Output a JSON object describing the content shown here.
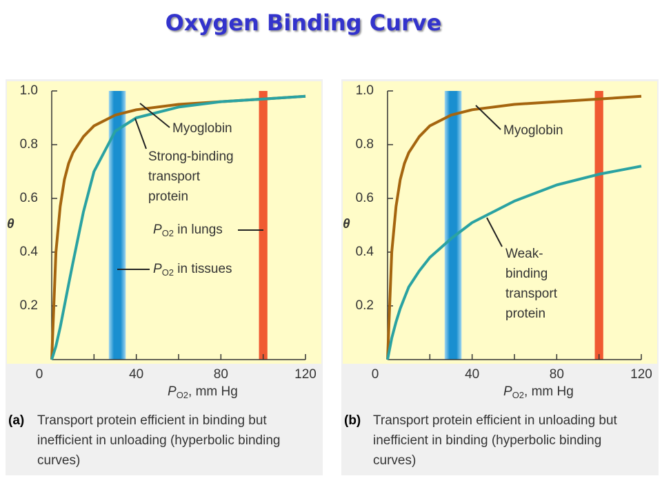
{
  "title": "Oxygen Binding Curve",
  "chart_data": [
    {
      "type": "line",
      "panel_label": "(a)",
      "caption": [
        "Transport protein efficient in binding but",
        "inefficient in unloading (hyperbolic binding",
        "curves)"
      ],
      "y_label": "θ",
      "x_label": [
        "P",
        "O2",
        ", mm Hg"
      ],
      "x": [
        0,
        2,
        4,
        6,
        8,
        10,
        15,
        20,
        30,
        40,
        60,
        80,
        100,
        120
      ],
      "series": [
        {
          "name": "Myoglobin",
          "color": "#a5650f",
          "values": [
            0,
            0.4,
            0.57,
            0.67,
            0.73,
            0.77,
            0.83,
            0.87,
            0.91,
            0.93,
            0.95,
            0.96,
            0.97,
            0.98
          ]
        },
        {
          "name": "Strong-binding transport protein",
          "color": "#2aa2a2",
          "values": [
            0,
            0.05,
            0.12,
            0.2,
            0.28,
            0.36,
            0.55,
            0.7,
            0.85,
            0.9,
            0.94,
            0.96,
            0.97,
            0.98
          ]
        }
      ],
      "bands": [
        {
          "range": [
            27,
            35
          ],
          "color": "#1a8fd0"
        },
        {
          "range": [
            98,
            102
          ],
          "color": "#f05a32"
        }
      ],
      "annotations": [
        {
          "lines": [
            "Myoglobin"
          ]
        },
        {
          "lines": [
            "Strong-binding",
            "transport",
            "protein"
          ]
        },
        {
          "parts": [
            "P",
            "O2",
            " in lungs"
          ]
        },
        {
          "parts": [
            "P",
            "O2",
            " in tissues"
          ]
        }
      ],
      "xlim": [
        0,
        120
      ],
      "xticks": [
        0,
        40,
        80,
        120
      ],
      "x_minor_ticks": [
        20,
        60,
        100
      ],
      "ylim": [
        0,
        1
      ],
      "yticks": [
        0.2,
        0.4,
        0.6,
        0.8,
        {
          "value": 1,
          "label": "1.0"
        }
      ]
    },
    {
      "type": "line",
      "panel_label": "(b)",
      "caption": [
        "Transport protein efficient in unloading but",
        "inefficient in binding (hyperbolic binding",
        "curves)"
      ],
      "y_label": "θ",
      "x_label": [
        "P",
        "O2",
        ", mm Hg"
      ],
      "x": [
        0,
        2,
        4,
        6,
        8,
        10,
        15,
        20,
        30,
        40,
        60,
        80,
        100,
        120
      ],
      "series": [
        {
          "name": "Myoglobin",
          "color": "#a5650f",
          "values": [
            0,
            0.4,
            0.57,
            0.67,
            0.73,
            0.77,
            0.83,
            0.87,
            0.91,
            0.93,
            0.95,
            0.96,
            0.97,
            0.98
          ]
        },
        {
          "name": "Weak-binding transport protein",
          "color": "#2aa2a2",
          "values": [
            0,
            0.08,
            0.14,
            0.19,
            0.23,
            0.27,
            0.33,
            0.38,
            0.45,
            0.51,
            0.59,
            0.65,
            0.69,
            0.72
          ]
        }
      ],
      "bands": [
        {
          "range": [
            27,
            35
          ],
          "color": "#1a8fd0"
        },
        {
          "range": [
            98,
            102
          ],
          "color": "#f05a32"
        }
      ],
      "annotations": [
        {
          "lines": [
            "Myoglobin"
          ]
        },
        {
          "lines": [
            "Weak-",
            "binding",
            "transport",
            "protein"
          ]
        }
      ],
      "xlim": [
        0,
        120
      ],
      "xticks": [
        0,
        40,
        80,
        120
      ],
      "x_minor_ticks": [
        20,
        60,
        100
      ],
      "ylim": [
        0,
        1
      ],
      "yticks": [
        0.2,
        0.4,
        0.6,
        0.8,
        {
          "value": 1,
          "label": "1.0"
        }
      ]
    }
  ]
}
